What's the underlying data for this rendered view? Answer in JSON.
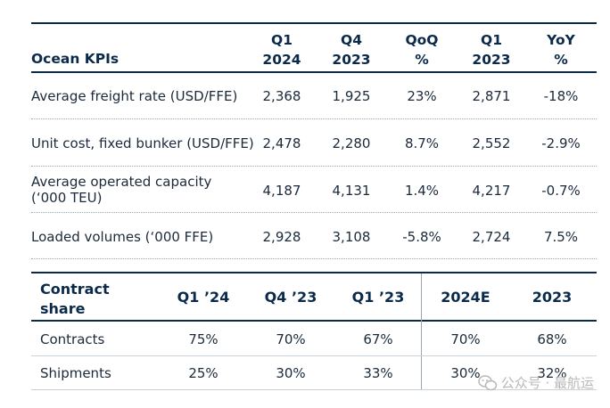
{
  "top_table": {
    "title": "Ocean KPIs",
    "columns": [
      {
        "line1": "Q1",
        "line2": "2024"
      },
      {
        "line1": "Q4",
        "line2": "2023"
      },
      {
        "line1": "QoQ",
        "line2": "%"
      },
      {
        "line1": "Q1",
        "line2": "2023"
      },
      {
        "line1": "YoY",
        "line2": "%"
      }
    ],
    "rows": [
      {
        "label": "Average freight rate (USD/FFE)",
        "values": [
          "2,368",
          "1,925",
          "23%",
          "2,871",
          "-18%"
        ]
      },
      {
        "label": "Unit cost, fixed bunker (USD/FFE)",
        "values": [
          "2,478",
          "2,280",
          "8.7%",
          "2,552",
          "-2.9%"
        ]
      },
      {
        "label_line1": "Average operated capacity",
        "label_line2": "(‘000 TEU)",
        "values": [
          "4,187",
          "4,131",
          "1.4%",
          "4,217",
          "-0.7%"
        ]
      },
      {
        "label": "Loaded volumes (‘000 FFE)",
        "values": [
          "2,928",
          "3,108",
          "-5.8%",
          "2,724",
          "7.5%"
        ]
      }
    ]
  },
  "bottom_table": {
    "title_line1": "Contract",
    "title_line2": "share",
    "columns": [
      "Q1 ’24",
      "Q4 ’23",
      "Q1 ’23",
      "2024E",
      "2023"
    ],
    "rows": [
      {
        "label": "Contracts",
        "values": [
          "75%",
          "70%",
          "67%",
          "70%",
          "68%"
        ]
      },
      {
        "label": "Shipments",
        "values": [
          "25%",
          "30%",
          "33%",
          "30%",
          "32%"
        ]
      }
    ]
  },
  "watermark": {
    "text": "公众号 · 最航运",
    "icon": "wechat-icon"
  },
  "colors": {
    "navy": "#0b2a4a",
    "text": "#1b2a3a",
    "divider": "#9aa6b2"
  }
}
